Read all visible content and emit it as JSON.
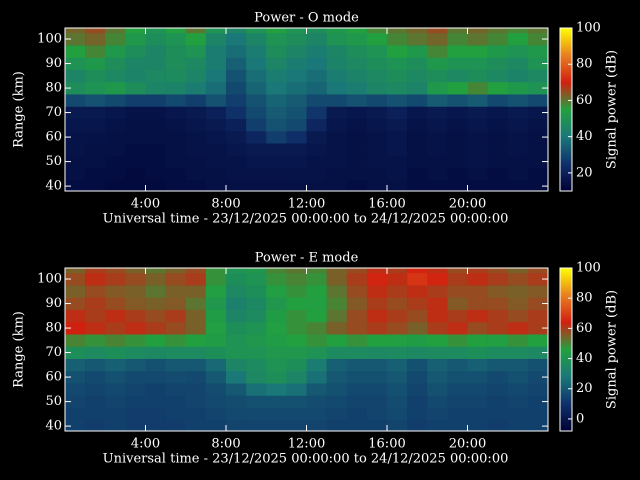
{
  "chart_data": [
    {
      "type": "heatmap",
      "title": "Power - O mode",
      "x_label": "Universal time - 23/12/2025 00:00:00 to 24/12/2025 00:00:00",
      "y_label": "Range (km)",
      "colorbar_label": "Signal power (dB)",
      "xlim": [
        0,
        24
      ],
      "ylim": [
        38,
        104.5
      ],
      "xticks": [
        {
          "value": 4,
          "label": "4:00"
        },
        {
          "value": 8,
          "label": "8:00"
        },
        {
          "value": 12,
          "label": "12:00"
        },
        {
          "value": 16,
          "label": "16:00"
        },
        {
          "value": 20,
          "label": "20:00"
        }
      ],
      "yticks": [
        40,
        50,
        60,
        70,
        80,
        90,
        100
      ],
      "clim": [
        10,
        100
      ],
      "cticks": [
        20,
        40,
        60,
        80,
        100
      ],
      "colormap": [
        "#000033",
        "#10306a",
        "#1a7878",
        "#22a040",
        "#d02010",
        "#e88020",
        "#ffff00"
      ],
      "x": [
        0.5,
        1.5,
        2.5,
        3.5,
        4.5,
        5.5,
        6.5,
        7.5,
        8.5,
        9.5,
        10.5,
        11.5,
        12.5,
        13.5,
        14.5,
        15.5,
        16.5,
        17.5,
        18.5,
        19.5,
        20.5,
        21.5,
        22.5,
        23.5
      ],
      "y": [
        40,
        45,
        50,
        55,
        60,
        65,
        70,
        75,
        80,
        85,
        90,
        95,
        100,
        105
      ],
      "z": [
        [
          14,
          14,
          13,
          13,
          13,
          14,
          14,
          15,
          15,
          15,
          15,
          15,
          15,
          15,
          14,
          15,
          15,
          14,
          14,
          14,
          14,
          14,
          14,
          14
        ],
        [
          15,
          14,
          14,
          13,
          14,
          14,
          15,
          15,
          16,
          16,
          16,
          16,
          16,
          15,
          15,
          15,
          16,
          14,
          15,
          14,
          15,
          14,
          15,
          14
        ],
        [
          15,
          15,
          14,
          14,
          14,
          15,
          15,
          16,
          16,
          17,
          17,
          17,
          16,
          16,
          15,
          16,
          16,
          15,
          15,
          15,
          16,
          15,
          15,
          15
        ],
        [
          16,
          15,
          15,
          14,
          14,
          15,
          16,
          16,
          17,
          18,
          18,
          18,
          17,
          16,
          15,
          16,
          17,
          15,
          16,
          15,
          16,
          15,
          16,
          15
        ],
        [
          16,
          16,
          15,
          15,
          15,
          15,
          16,
          17,
          18,
          22,
          28,
          24,
          18,
          16,
          15,
          16,
          17,
          15,
          16,
          15,
          16,
          15,
          16,
          15
        ],
        [
          17,
          17,
          16,
          15,
          15,
          16,
          17,
          18,
          20,
          28,
          32,
          30,
          22,
          17,
          16,
          17,
          18,
          16,
          17,
          16,
          17,
          16,
          17,
          16
        ],
        [
          18,
          18,
          17,
          16,
          16,
          17,
          18,
          20,
          25,
          30,
          34,
          32,
          26,
          18,
          17,
          18,
          20,
          17,
          18,
          17,
          18,
          17,
          18,
          17
        ],
        [
          30,
          32,
          30,
          28,
          28,
          30,
          28,
          32,
          28,
          32,
          36,
          34,
          30,
          30,
          32,
          30,
          32,
          30,
          34,
          32,
          34,
          30,
          32,
          30
        ],
        [
          48,
          50,
          52,
          48,
          45,
          44,
          42,
          38,
          30,
          36,
          40,
          38,
          36,
          40,
          42,
          45,
          46,
          44,
          52,
          55,
          58,
          55,
          52,
          50
        ],
        [
          45,
          48,
          46,
          44,
          46,
          47,
          45,
          40,
          32,
          38,
          42,
          40,
          38,
          42,
          44,
          46,
          48,
          46,
          48,
          46,
          48,
          46,
          44,
          46
        ],
        [
          50,
          52,
          48,
          45,
          45,
          48,
          46,
          42,
          35,
          40,
          45,
          42,
          40,
          44,
          46,
          48,
          50,
          48,
          52,
          50,
          50,
          48,
          46,
          50
        ],
        [
          55,
          58,
          52,
          48,
          45,
          48,
          50,
          42,
          38,
          42,
          48,
          45,
          42,
          45,
          48,
          50,
          55,
          52,
          58,
          55,
          55,
          52,
          50,
          52
        ],
        [
          60,
          62,
          58,
          52,
          48,
          50,
          55,
          45,
          40,
          45,
          50,
          48,
          45,
          50,
          52,
          55,
          58,
          60,
          62,
          58,
          60,
          58,
          55,
          58
        ],
        [
          62,
          65,
          60,
          55,
          50,
          55,
          60,
          50,
          45,
          50,
          55,
          50,
          48,
          52,
          55,
          58,
          60,
          62,
          65,
          60,
          62,
          60,
          58,
          60
        ]
      ]
    },
    {
      "type": "heatmap",
      "title": "Power - E mode",
      "x_label": "Universal time - 23/12/2025 00:00:00 to 24/12/2025 00:00:00",
      "y_label": "Range (km)",
      "colorbar_label": "Signal power (dB)",
      "xlim": [
        0,
        24
      ],
      "ylim": [
        38,
        104.5
      ],
      "xticks": [
        {
          "value": 4,
          "label": "4:00"
        },
        {
          "value": 8,
          "label": "8:00"
        },
        {
          "value": 12,
          "label": "12:00"
        },
        {
          "value": 16,
          "label": "16:00"
        },
        {
          "value": 20,
          "label": "20:00"
        }
      ],
      "yticks": [
        40,
        50,
        60,
        70,
        80,
        90,
        100
      ],
      "clim": [
        -8,
        100
      ],
      "cticks": [
        0,
        20,
        40,
        60,
        80,
        100
      ],
      "colormap": [
        "#000033",
        "#10306a",
        "#1a7878",
        "#22a040",
        "#d02010",
        "#e88020",
        "#ffff00"
      ],
      "x": [
        0.5,
        1.5,
        2.5,
        3.5,
        4.5,
        5.5,
        6.5,
        7.5,
        8.5,
        9.5,
        10.5,
        11.5,
        12.5,
        13.5,
        14.5,
        15.5,
        16.5,
        17.5,
        18.5,
        19.5,
        20.5,
        21.5,
        22.5,
        23.5
      ],
      "y": [
        40,
        45,
        50,
        55,
        60,
        65,
        70,
        75,
        80,
        85,
        90,
        95,
        100,
        105
      ],
      "z": [
        [
          14,
          13,
          14,
          13,
          13,
          13,
          14,
          14,
          15,
          15,
          15,
          15,
          15,
          14,
          14,
          14,
          15,
          13,
          14,
          14,
          14,
          13,
          14,
          14
        ],
        [
          14,
          14,
          14,
          13,
          13,
          14,
          14,
          15,
          16,
          16,
          16,
          16,
          16,
          15,
          14,
          15,
          16,
          14,
          15,
          14,
          14,
          14,
          14,
          14
        ],
        [
          15,
          14,
          15,
          14,
          14,
          14,
          15,
          16,
          17,
          18,
          18,
          18,
          17,
          16,
          15,
          15,
          17,
          14,
          16,
          15,
          15,
          14,
          15,
          14
        ],
        [
          16,
          15,
          16,
          15,
          14,
          15,
          15,
          17,
          20,
          26,
          28,
          26,
          20,
          18,
          16,
          16,
          18,
          15,
          18,
          16,
          16,
          15,
          16,
          15
        ],
        [
          18,
          16,
          18,
          16,
          16,
          17,
          16,
          20,
          28,
          35,
          38,
          34,
          26,
          20,
          18,
          18,
          20,
          16,
          20,
          18,
          18,
          16,
          18,
          16
        ],
        [
          22,
          20,
          22,
          20,
          18,
          20,
          20,
          24,
          34,
          36,
          40,
          38,
          30,
          22,
          20,
          20,
          22,
          18,
          22,
          20,
          22,
          20,
          20,
          18
        ],
        [
          38,
          36,
          38,
          36,
          35,
          36,
          36,
          38,
          40,
          40,
          42,
          42,
          40,
          36,
          36,
          35,
          36,
          35,
          36,
          36,
          38,
          36,
          36,
          35
        ],
        [
          50,
          48,
          50,
          48,
          46,
          48,
          46,
          44,
          40,
          42,
          44,
          46,
          48,
          46,
          48,
          46,
          45,
          44,
          46,
          48,
          46,
          45,
          48,
          46
        ],
        [
          64,
          62,
          60,
          62,
          60,
          58,
          55,
          45,
          38,
          40,
          45,
          48,
          50,
          55,
          58,
          60,
          58,
          55,
          60,
          62,
          58,
          60,
          62,
          60
        ],
        [
          62,
          60,
          62,
          60,
          58,
          60,
          55,
          44,
          34,
          36,
          44,
          48,
          46,
          52,
          58,
          62,
          60,
          58,
          62,
          60,
          62,
          60,
          58,
          60
        ],
        [
          58,
          60,
          58,
          56,
          55,
          56,
          52,
          42,
          32,
          35,
          42,
          46,
          45,
          50,
          56,
          60,
          58,
          60,
          62,
          56,
          58,
          58,
          56,
          58
        ],
        [
          55,
          58,
          56,
          55,
          52,
          55,
          55,
          45,
          35,
          38,
          45,
          48,
          46,
          52,
          58,
          62,
          60,
          62,
          60,
          58,
          58,
          56,
          55,
          56
        ],
        [
          58,
          62,
          60,
          58,
          55,
          58,
          60,
          48,
          38,
          40,
          48,
          50,
          48,
          55,
          60,
          65,
          62,
          68,
          65,
          60,
          62,
          60,
          58,
          60
        ],
        [
          55,
          60,
          58,
          55,
          52,
          55,
          58,
          48,
          40,
          42,
          50,
          52,
          50,
          55,
          58,
          62,
          60,
          65,
          62,
          58,
          60,
          58,
          55,
          58
        ]
      ]
    }
  ]
}
